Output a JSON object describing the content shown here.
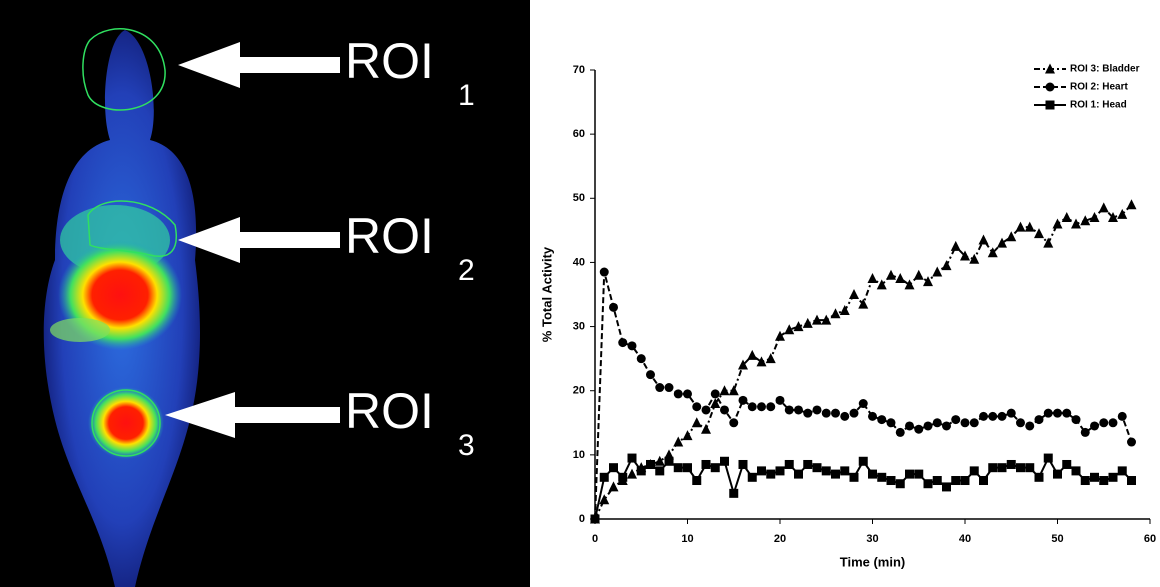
{
  "image": {
    "labels": [
      {
        "text": "ROI",
        "subscript": "1"
      },
      {
        "text": "ROI",
        "subscript": "2"
      },
      {
        "text": "ROI",
        "subscript": "3"
      }
    ]
  },
  "chart_data": {
    "type": "line",
    "x_label": "Time (min)",
    "y_label": "% Total Activity",
    "x": [
      0,
      1,
      2,
      3,
      4,
      5,
      6,
      7,
      8,
      9,
      10,
      11,
      12,
      13,
      14,
      15,
      16,
      17,
      18,
      19,
      20,
      21,
      22,
      23,
      24,
      25,
      26,
      27,
      28,
      29,
      30,
      31,
      32,
      33,
      34,
      35,
      36,
      37,
      38,
      39,
      40,
      41,
      42,
      43,
      44,
      45,
      46,
      47,
      48,
      49,
      50,
      51,
      52,
      53,
      54,
      55,
      56,
      57,
      58
    ],
    "series": [
      {
        "name": "ROI 3: Bladder",
        "color": "#000000",
        "marker": "triangle",
        "dash": "dashdot",
        "values": [
          0,
          3,
          5,
          6,
          7,
          8,
          8.5,
          9,
          10,
          12,
          13,
          15,
          14,
          18,
          20,
          20,
          24,
          25.5,
          24.5,
          25,
          28.5,
          29.5,
          30,
          30.5,
          31,
          31,
          32,
          32.5,
          35,
          33.5,
          37.5,
          36.5,
          38,
          37.5,
          36.5,
          38,
          37,
          38.5,
          39.5,
          42.5,
          41,
          40.5,
          43.5,
          41.5,
          43,
          44,
          45.5,
          45.5,
          44.5,
          43,
          46,
          47,
          46,
          46.5,
          47,
          48.5,
          47,
          47.5,
          49
        ]
      },
      {
        "name": "ROI 2: Heart",
        "color": "#000000",
        "marker": "circle",
        "dash": "dash",
        "values": [
          0,
          38.5,
          33,
          27.5,
          27,
          25,
          22.5,
          20.5,
          20.5,
          19.5,
          19.5,
          17.5,
          17,
          19.5,
          17,
          15,
          18.5,
          17.5,
          17.5,
          17.5,
          18.5,
          17,
          17,
          16.5,
          17,
          16.5,
          16.5,
          16,
          16.5,
          18,
          16,
          15.5,
          15,
          13.5,
          14.5,
          14,
          14.5,
          15,
          14.5,
          15.5,
          15,
          15,
          16,
          16,
          16,
          16.5,
          15,
          14.5,
          15.5,
          16.5,
          16.5,
          16.5,
          15.5,
          13.5,
          14.5,
          15,
          15,
          16,
          12
        ]
      },
      {
        "name": "ROI 1: Head",
        "color": "#000000",
        "marker": "square",
        "dash": "solid",
        "values": [
          0,
          6.5,
          8,
          6.5,
          9.5,
          7.5,
          8.5,
          7.5,
          9,
          8,
          8,
          6,
          8.5,
          8,
          9,
          4,
          8.5,
          6.5,
          7.5,
          7,
          7.5,
          8.5,
          7,
          8.5,
          8,
          7.5,
          7,
          7.5,
          6.5,
          9,
          7,
          6.5,
          6,
          5.5,
          7,
          7,
          5.5,
          6,
          5,
          6,
          6,
          7.5,
          6,
          8,
          8,
          8.5,
          8,
          8,
          6.5,
          9.5,
          7,
          8.5,
          7.5,
          6,
          6.5,
          6,
          6.5,
          7.5,
          6
        ]
      }
    ],
    "xlim": [
      0,
      60
    ],
    "xticks": [
      0,
      10,
      20,
      30,
      40,
      50,
      60
    ],
    "ylim": [
      0,
      70
    ],
    "yticks": [
      0,
      10,
      20,
      30,
      40,
      50,
      60,
      70
    ],
    "legend": "upper right"
  }
}
